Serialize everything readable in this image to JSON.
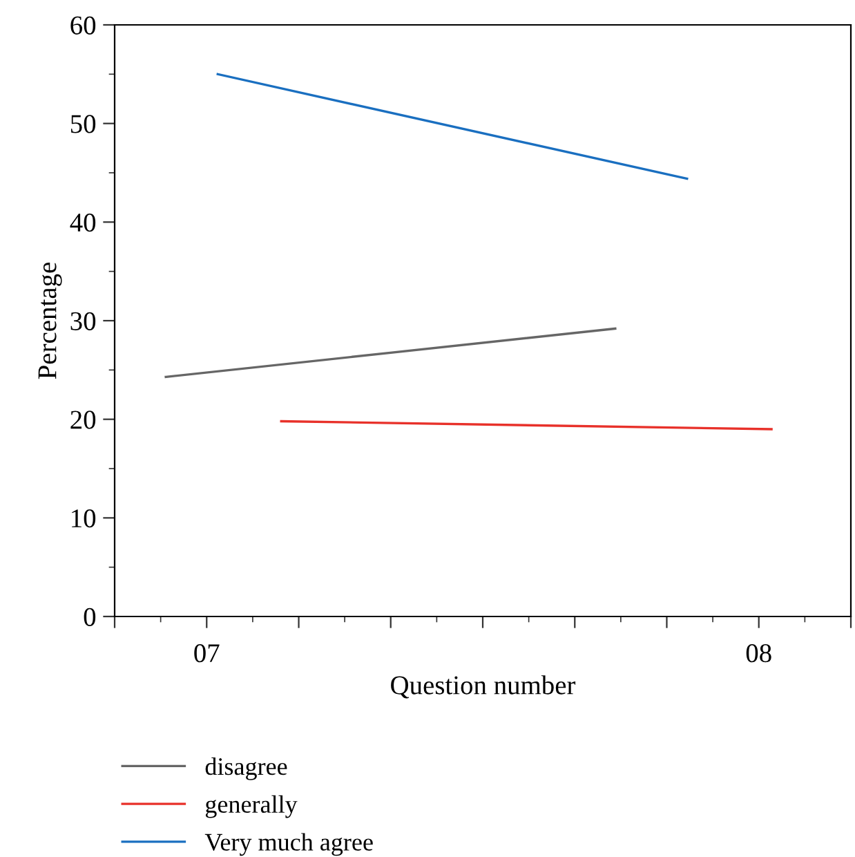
{
  "chart_data": {
    "type": "line",
    "xlabel": "Question number",
    "ylabel": "Percentage",
    "xlim": [
      6.8333,
      8.1667
    ],
    "xticks": [
      {
        "value": 6.8333,
        "label": null
      },
      {
        "value": 7,
        "label": "07"
      },
      {
        "value": 7.1667,
        "label": null
      },
      {
        "value": 7.3333,
        "label": null
      },
      {
        "value": 7.5,
        "label": null
      },
      {
        "value": 7.6667,
        "label": null
      },
      {
        "value": 7.8333,
        "label": null
      },
      {
        "value": 8,
        "label": "08"
      },
      {
        "value": 8.1667,
        "label": null
      }
    ],
    "ylim": [
      0,
      60
    ],
    "yticks": [
      0,
      10,
      20,
      30,
      40,
      50,
      60
    ],
    "series": [
      {
        "name": "disagree",
        "color": "#666666",
        "x": [
          6.926,
          7.74
        ],
        "values": [
          24.3,
          29.2
        ]
      },
      {
        "name": "generally",
        "color": "#e8312a",
        "x": [
          7.135,
          8.023
        ],
        "values": [
          19.8,
          19.0
        ]
      },
      {
        "name": "Very much agree",
        "color": "#1a6fc0",
        "x": [
          7.02,
          7.87
        ],
        "values": [
          55,
          44.4
        ]
      }
    ],
    "legend": "bottom",
    "grid": false,
    "marker": "none",
    "line_style": "solid"
  }
}
